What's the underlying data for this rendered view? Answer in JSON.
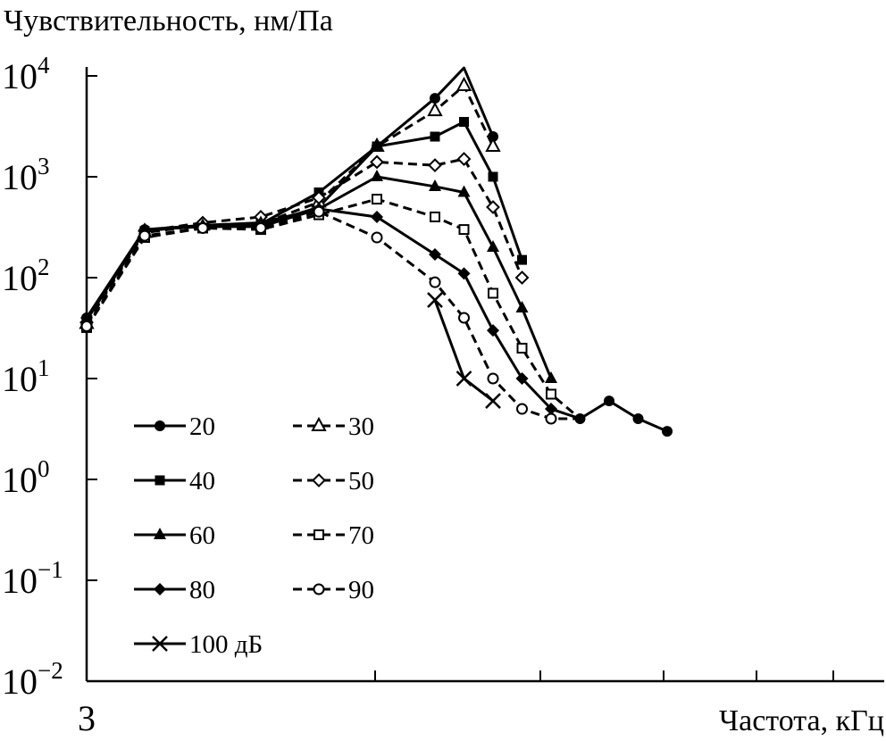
{
  "chart_data": {
    "type": "line",
    "ylabel": "Чувствительность, нм/Па",
    "xlabel": "Частота, кГц",
    "y_scale": "log",
    "ylim": [
      0.01,
      10000
    ],
    "x_tick_labels": [
      "3"
    ],
    "y_ticks": [
      {
        "value": 0.01,
        "base": "10",
        "exp": "−2"
      },
      {
        "value": 0.1,
        "base": "10",
        "exp": "−1"
      },
      {
        "value": 1,
        "base": "10",
        "exp": "0"
      },
      {
        "value": 10,
        "base": "10",
        "exp": "1"
      },
      {
        "value": 100,
        "base": "10",
        "exp": "2"
      },
      {
        "value": 1000,
        "base": "10",
        "exp": "3"
      },
      {
        "value": 10000,
        "base": "10",
        "exp": "4"
      }
    ],
    "grid": false,
    "legend_position": "lower-left",
    "series": [
      {
        "name": "20",
        "style": "solid",
        "marker": "circle-filled",
        "points": [
          [
            0,
            40
          ],
          [
            1,
            300
          ],
          [
            2,
            320
          ],
          [
            3,
            330
          ],
          [
            4,
            500
          ],
          [
            5,
            2000
          ],
          [
            6,
            6000
          ],
          [
            6.5,
            12000
          ],
          [
            7,
            2500
          ]
        ],
        "markers": [
          0,
          1,
          2,
          3,
          4,
          5,
          6,
          8
        ]
      },
      {
        "name": "30",
        "style": "dashed",
        "marker": "triangle-open",
        "points": [
          [
            0,
            35
          ],
          [
            1,
            280
          ],
          [
            2,
            330
          ],
          [
            3,
            340
          ],
          [
            4,
            560
          ],
          [
            5,
            2000
          ],
          [
            6,
            4500
          ],
          [
            6.5,
            8000
          ],
          [
            7,
            2000
          ]
        ],
        "markers": [
          0,
          1,
          2,
          3,
          4,
          5,
          6,
          7,
          8
        ]
      },
      {
        "name": "40",
        "style": "solid",
        "marker": "square-filled",
        "points": [
          [
            0,
            38
          ],
          [
            1,
            290
          ],
          [
            2,
            330
          ],
          [
            3,
            340
          ],
          [
            4,
            700
          ],
          [
            5,
            2000
          ],
          [
            6,
            2500
          ],
          [
            6.5,
            3500
          ],
          [
            7,
            1000
          ],
          [
            7.5,
            150
          ]
        ],
        "markers": [
          0,
          1,
          2,
          3,
          4,
          5,
          6,
          7,
          8,
          9
        ]
      },
      {
        "name": "50",
        "style": "dashed",
        "marker": "diamond-open",
        "points": [
          [
            0,
            36
          ],
          [
            1,
            290
          ],
          [
            2,
            350
          ],
          [
            3,
            400
          ],
          [
            4,
            620
          ],
          [
            5,
            1400
          ],
          [
            6,
            1300
          ],
          [
            6.5,
            1500
          ],
          [
            7,
            500
          ],
          [
            7.5,
            100
          ]
        ],
        "markers": [
          0,
          1,
          2,
          3,
          4,
          5,
          6,
          7,
          8,
          9
        ]
      },
      {
        "name": "60",
        "style": "solid",
        "marker": "triangle-filled",
        "points": [
          [
            0,
            38
          ],
          [
            1,
            300
          ],
          [
            2,
            330
          ],
          [
            3,
            350
          ],
          [
            4,
            480
          ],
          [
            5,
            1000
          ],
          [
            6,
            800
          ],
          [
            6.5,
            700
          ],
          [
            7,
            200
          ],
          [
            7.5,
            50
          ],
          [
            8,
            10
          ]
        ],
        "markers": [
          0,
          1,
          2,
          3,
          4,
          5,
          6,
          7,
          8,
          9,
          10
        ]
      },
      {
        "name": "70",
        "style": "dashed",
        "marker": "square-open",
        "points": [
          [
            0,
            32
          ],
          [
            1,
            250
          ],
          [
            2,
            310
          ],
          [
            3,
            300
          ],
          [
            4,
            420
          ],
          [
            5,
            600
          ],
          [
            6,
            400
          ],
          [
            6.5,
            300
          ],
          [
            7,
            70
          ],
          [
            7.5,
            20
          ],
          [
            8,
            7
          ],
          [
            8.5,
            4
          ]
        ],
        "markers": [
          0,
          1,
          2,
          3,
          4,
          5,
          6,
          7,
          8,
          9,
          10
        ]
      },
      {
        "name": "80",
        "style": "solid",
        "marker": "diamond-filled",
        "points": [
          [
            0,
            40
          ],
          [
            1,
            300
          ],
          [
            2,
            320
          ],
          [
            3,
            320
          ],
          [
            4,
            480
          ],
          [
            5,
            400
          ],
          [
            6,
            170
          ],
          [
            6.5,
            110
          ],
          [
            7,
            30
          ],
          [
            7.5,
            10
          ],
          [
            8,
            5
          ],
          [
            8.5,
            4
          ]
        ],
        "markers": [
          0,
          1,
          2,
          3,
          4,
          5,
          6,
          7,
          8,
          9,
          10
        ]
      },
      {
        "name": "90",
        "style": "dashed",
        "marker": "circle-open",
        "points": [
          [
            0,
            33
          ],
          [
            1,
            260
          ],
          [
            2,
            310
          ],
          [
            3,
            310
          ],
          [
            4,
            450
          ],
          [
            5,
            250
          ],
          [
            6,
            90
          ],
          [
            6.5,
            40
          ],
          [
            7,
            10
          ],
          [
            7.5,
            5
          ],
          [
            8,
            4
          ],
          [
            8.5,
            4
          ]
        ],
        "markers": [
          0,
          1,
          2,
          3,
          4,
          5,
          6,
          7,
          8,
          9,
          10
        ]
      },
      {
        "name": "100 дБ",
        "style": "solid",
        "marker": "cross",
        "points": [
          [
            6,
            60
          ],
          [
            6.5,
            10
          ],
          [
            7,
            6
          ]
        ],
        "markers": [
          0,
          1,
          2
        ]
      },
      {
        "name": "",
        "style": "solid",
        "marker": "circle-filled",
        "points": [
          [
            8.5,
            4
          ],
          [
            9,
            6
          ],
          [
            9.5,
            4
          ],
          [
            10,
            3
          ]
        ],
        "markers": [
          0,
          1,
          2,
          3
        ]
      }
    ]
  }
}
